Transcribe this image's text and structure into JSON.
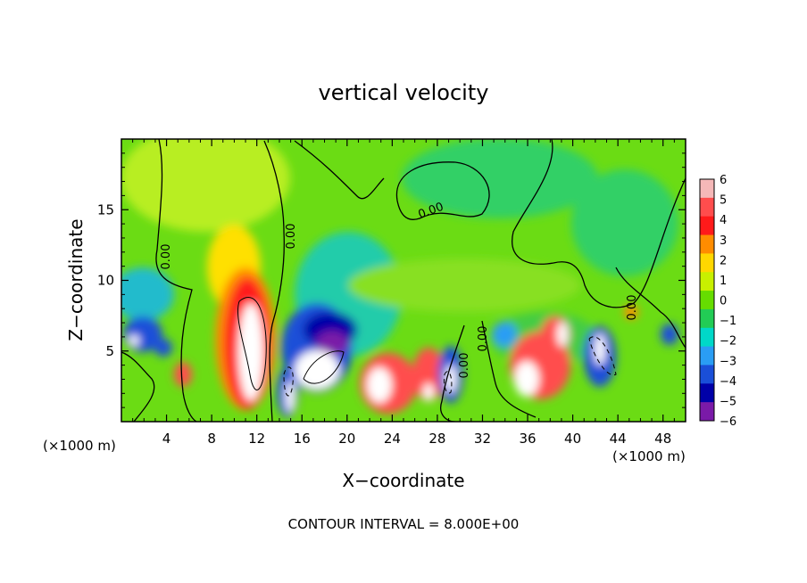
{
  "chart_data": {
    "type": "heatmap",
    "title": "vertical velocity",
    "xlabel": "X−coordinate",
    "ylabel": "Z−coordinate",
    "x_unit_left": "(×1000 m)",
    "x_unit_right": "(×1000 m)",
    "xlim": [
      0,
      50
    ],
    "ylim": [
      0,
      20
    ],
    "x_ticks": [
      "4",
      "8",
      "12",
      "16",
      "20",
      "24",
      "28",
      "32",
      "36",
      "40",
      "44",
      "48"
    ],
    "x_tick_values": [
      4,
      8,
      12,
      16,
      20,
      24,
      28,
      32,
      36,
      40,
      44,
      48
    ],
    "y_ticks": [
      "5",
      "10",
      "15"
    ],
    "y_tick_values": [
      5,
      10,
      15
    ],
    "colorbar": {
      "labels": [
        "6",
        "5",
        "4",
        "3",
        "2",
        "1",
        "0",
        "−1",
        "−2",
        "−3",
        "−4",
        "−5",
        "−6"
      ],
      "values": [
        6,
        5,
        4,
        3,
        2,
        1,
        0,
        -1,
        -2,
        -3,
        -4,
        -5,
        -6
      ],
      "colors": [
        "#f5b8b8",
        "#ff4d4d",
        "#ff1a1a",
        "#ff8c00",
        "#ffd700",
        "#c8f000",
        "#66dd00",
        "#22cc55",
        "#00d8c8",
        "#2a9df4",
        "#1a4fd8",
        "#0000a8",
        "#7a1aa8"
      ]
    },
    "contour_labels": [
      "0.00",
      "0.00",
      "0.00",
      "0.00",
      "0.00",
      "0.00"
    ],
    "footer": "CONTOUR INTERVAL = 8.000E+00",
    "features": [
      {
        "x": 11,
        "z": 5.5,
        "value": 10
      },
      {
        "x": 15,
        "z": 2.8,
        "value": -8
      },
      {
        "x": 18,
        "z": 3.5,
        "value": 7
      },
      {
        "x": 24,
        "z": 2.5,
        "value": 6
      },
      {
        "x": 28,
        "z": 2.5,
        "value": 5
      },
      {
        "x": 30,
        "z": 2.5,
        "value": -4
      },
      {
        "x": 36,
        "z": 2.5,
        "value": 7
      },
      {
        "x": 38,
        "z": 5.0,
        "value": 5
      },
      {
        "x": 42,
        "z": 4.0,
        "value": -5
      },
      {
        "x": 2,
        "z": 5.5,
        "value": -4
      },
      {
        "x": 16,
        "z": 8.0,
        "value": -3
      },
      {
        "x": 5,
        "z": 3.5,
        "value": 4
      },
      {
        "x": 10,
        "z": 12.0,
        "value": 2
      }
    ]
  }
}
